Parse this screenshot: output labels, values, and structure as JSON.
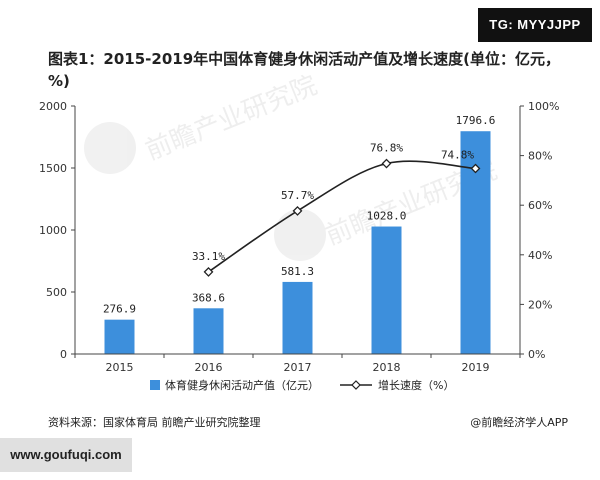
{
  "header_tag": "TG: MYYJJPP",
  "title": "图表1：2015-2019年中国体育健身休闲活动产值及增长速度(单位：亿元，%)",
  "chart_data": {
    "type": "bar",
    "categories": [
      "2015",
      "2016",
      "2017",
      "2018",
      "2019"
    ],
    "series": [
      {
        "name": "体育健身休闲活动产值（亿元）",
        "type": "bar",
        "axis": "left",
        "values": [
          276.9,
          368.6,
          581.3,
          1028.0,
          1796.6
        ],
        "labels": [
          "276.9",
          "368.6",
          "581.3",
          "1028.0",
          "1796.6"
        ],
        "color": "#3d8fdc"
      },
      {
        "name": "增长速度（%）",
        "type": "line",
        "axis": "right",
        "x": [
          "2016",
          "2017",
          "2018",
          "2019"
        ],
        "values": [
          33.1,
          57.7,
          76.8,
          74.8
        ],
        "labels": [
          "33.1%",
          "57.7%",
          "76.8%",
          "74.8%"
        ],
        "color": "#222222"
      }
    ],
    "ylim_left": [
      0,
      2000
    ],
    "yticks_left": [
      "0",
      "500",
      "1000",
      "1500",
      "2000"
    ],
    "ylim_right": [
      0,
      100
    ],
    "yticks_right": [
      "0%",
      "20%",
      "40%",
      "60%",
      "80%",
      "100%"
    ],
    "legend": [
      "体育健身休闲活动产值（亿元）",
      "增长速度（%）"
    ],
    "legend_position": "bottom"
  },
  "watermark": "前瞻产业研究院",
  "footer": {
    "source": "资料来源：国家体育局 前瞻产业研究院整理",
    "brand": "@前瞻经济学人APP"
  },
  "bottom_tag": "www.goufuqi.com"
}
